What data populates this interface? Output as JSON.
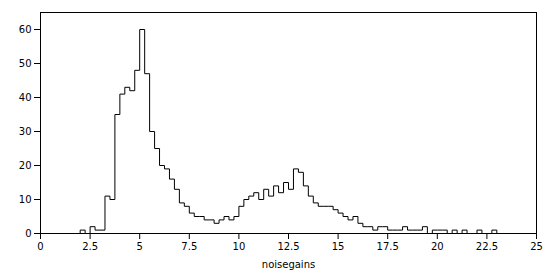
{
  "chart_data": {
    "type": "histogram",
    "bins": [
      0.0,
      0.25,
      0.5,
      0.75,
      1.0,
      1.25,
      1.5,
      1.75,
      2.0,
      2.25,
      2.5,
      2.75,
      3.0,
      3.25,
      3.5,
      3.75,
      4.0,
      4.25,
      4.5,
      4.75,
      5.0,
      5.25,
      5.5,
      5.75,
      6.0,
      6.25,
      6.5,
      6.75,
      7.0,
      7.25,
      7.5,
      7.75,
      8.0,
      8.25,
      8.5,
      8.75,
      9.0,
      9.25,
      9.5,
      9.75,
      10.0,
      10.25,
      10.5,
      10.75,
      11.0,
      11.25,
      11.5,
      11.75,
      12.0,
      12.25,
      12.5,
      12.75,
      13.0,
      13.25,
      13.5,
      13.75,
      14.0,
      14.25,
      14.5,
      14.75,
      15.0,
      15.25,
      15.5,
      15.75,
      16.0,
      16.25,
      16.5,
      16.75,
      17.0,
      17.25,
      17.5,
      17.75,
      18.0,
      18.25,
      18.5,
      18.75,
      19.0,
      19.25,
      19.5,
      19.75,
      20.0,
      20.25,
      20.5,
      20.75,
      21.0,
      21.25,
      21.5,
      21.75,
      22.0,
      22.25,
      22.5,
      22.75,
      23.0,
      23.25,
      23.5,
      23.75,
      24.0,
      24.25,
      24.5,
      24.75,
      25.0
    ],
    "values": [
      0,
      0,
      0,
      0,
      0,
      0,
      0,
      0,
      1,
      0,
      2,
      1,
      1,
      11,
      10,
      35,
      41,
      43,
      42,
      48,
      60,
      47,
      30,
      25,
      20,
      19,
      16,
      13,
      9,
      8,
      6,
      5,
      5,
      4,
      4,
      3,
      4,
      5,
      4,
      5,
      8,
      10,
      11,
      12,
      10,
      13,
      11,
      14,
      12,
      15,
      13,
      19,
      18,
      14,
      11,
      9,
      8,
      8,
      8,
      7,
      6,
      5,
      4,
      5,
      3,
      2,
      2,
      1,
      2,
      2,
      1,
      1,
      1,
      2,
      1,
      1,
      1,
      2,
      0,
      1,
      1,
      1,
      0,
      1,
      0,
      1,
      0,
      0,
      1,
      0,
      0,
      1,
      0,
      0,
      0,
      0,
      0,
      0,
      0,
      0
    ],
    "xlabel": "noisegains",
    "color": "#000000",
    "xlim": [
      0,
      25
    ],
    "ylim": [
      0,
      65
    ],
    "xticks": [
      0,
      2.5,
      5.0,
      7.5,
      10.0,
      12.5,
      15.0,
      17.5,
      20.0,
      22.5,
      25.0
    ],
    "yticks": [
      0,
      10,
      20,
      30,
      40,
      50,
      60
    ],
    "grid": false
  }
}
